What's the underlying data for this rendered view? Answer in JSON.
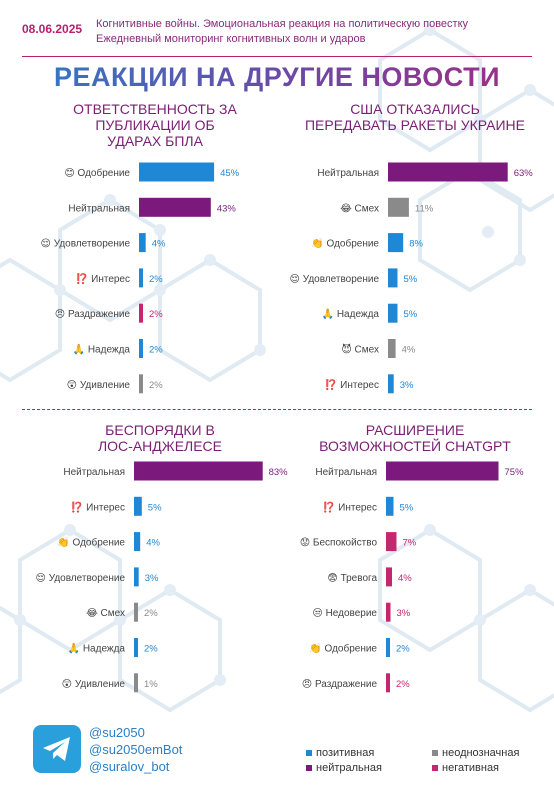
{
  "header": {
    "date": "08.06.2025",
    "subtitle_line1": "Когнитивные войны. Эмоциональная реакция на политическую повестку",
    "subtitle_line2": "Ежедневный мониторинг когнитивных волн и ударов"
  },
  "main_title": "РЕАКЦИИ НА ДРУГИЕ НОВОСТИ",
  "colors": {
    "positive": "#1e88d6",
    "neutral": "#7b1a7c",
    "ambiguous": "#8a8a8a",
    "negative": "#c4276f"
  },
  "chart_data": [
    {
      "type": "bar",
      "title": [
        "ОТВЕТСТВЕННОСТЬ ЗА",
        "ПУБЛИКАЦИИ ОБ",
        "УДАРАХ БПЛА"
      ],
      "categories": [
        "Одобрение",
        "Нейтральная",
        "Удовлетворение",
        "Интерес",
        "Раздражение",
        "Надежда",
        "Удивление"
      ],
      "emoji": [
        "😊",
        "",
        "😌",
        "⁉️",
        "😠",
        "🙏",
        "😲"
      ],
      "values": [
        45,
        43,
        4,
        2,
        2,
        2,
        2
      ],
      "value_labels": [
        "45%",
        "43%",
        "4%",
        "2%",
        "2%",
        "2%",
        "2%"
      ],
      "groups": [
        "positive",
        "neutral",
        "positive",
        "positive",
        "negative",
        "positive",
        "ambiguous"
      ]
    },
    {
      "type": "bar",
      "title": [
        "США ОТКАЗАЛИСЬ",
        "ПЕРЕДАВАТЬ РАКЕТЫ УКРАИНЕ"
      ],
      "categories": [
        "Нейтральная",
        "Смех",
        "Одобрение",
        "Удовлетворение",
        "Надежда",
        "Смех",
        "Интерес"
      ],
      "emoji": [
        "",
        "😂",
        "👏",
        "😌",
        "🙏",
        "😈",
        "⁉️"
      ],
      "values": [
        63,
        11,
        8,
        5,
        5,
        4,
        3
      ],
      "value_labels": [
        "63%",
        "11%",
        "8%",
        "5%",
        "5%",
        "4%",
        "3%"
      ],
      "groups": [
        "neutral",
        "ambiguous",
        "positive",
        "positive",
        "positive",
        "ambiguous",
        "positive"
      ]
    },
    {
      "type": "bar",
      "title": [
        "БЕСПОРЯДКИ В",
        "ЛОС-АНДЖЕЛЕСЕ"
      ],
      "categories": [
        "Нейтральная",
        "Интерес",
        "Одобрение",
        "Удовлетворение",
        "Смех",
        "Надежда",
        "Удивление"
      ],
      "emoji": [
        "",
        "⁉️",
        "👏",
        "😌",
        "😂",
        "🙏",
        "😲"
      ],
      "values": [
        83,
        5,
        4,
        3,
        2,
        2,
        1
      ],
      "value_labels": [
        "83%",
        "5%",
        "4%",
        "3%",
        "2%",
        "2%",
        "1%"
      ],
      "groups": [
        "neutral",
        "positive",
        "positive",
        "positive",
        "ambiguous",
        "positive",
        "ambiguous"
      ]
    },
    {
      "type": "bar",
      "title": [
        "РАСШИРЕНИЕ",
        "ВОЗМОЖНОСТЕЙ CHATGPT"
      ],
      "categories": [
        "Нейтральная",
        "Интерес",
        "Беспокойство",
        "Тревога",
        "Недоверие",
        "Одобрение",
        "Раздражение"
      ],
      "emoji": [
        "",
        "⁉️",
        "😟",
        "😨",
        "😒",
        "👏",
        "😠"
      ],
      "values": [
        75,
        5,
        7,
        4,
        3,
        2,
        2
      ],
      "value_labels": [
        "75%",
        "5%",
        "7%",
        "4%",
        "3%",
        "2%",
        "2%"
      ],
      "groups": [
        "neutral",
        "positive",
        "negative",
        "negative",
        "negative",
        "positive",
        "negative"
      ]
    }
  ],
  "footer": {
    "handles": [
      "@su2050",
      "@su2050emBot",
      "@suralov_bot"
    ],
    "telegram_icon": "telegram-icon"
  },
  "legend": [
    {
      "label": "позитивная",
      "group": "positive"
    },
    {
      "label": "нейтральная",
      "group": "neutral"
    },
    {
      "label": "неоднозначная",
      "group": "ambiguous"
    },
    {
      "label": "негативная",
      "group": "negative"
    }
  ]
}
